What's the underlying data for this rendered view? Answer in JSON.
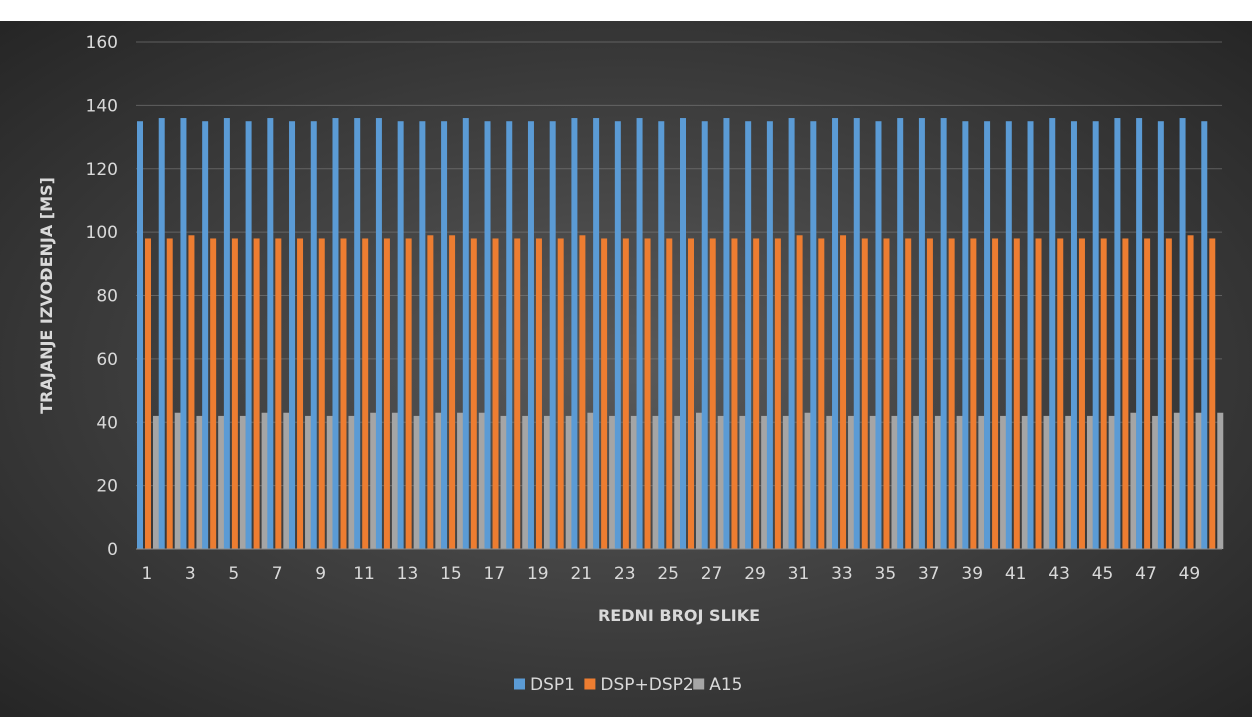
{
  "colors": {
    "background_center": "#595959",
    "background_edge": "#262626",
    "gridline": "#7f7f7f",
    "text": "#d9d9d9",
    "series": [
      "#5b9bd5",
      "#ed7d31",
      "#a5a5a5"
    ]
  },
  "chart_data": {
    "type": "bar",
    "title": "",
    "xlabel": "REDNI BROJ SLIKE",
    "ylabel": "TRAJANJE IZVOĐENJA [MS]",
    "ylim": [
      0,
      160
    ],
    "yticks": [
      0,
      20,
      40,
      60,
      80,
      100,
      120,
      140,
      160
    ],
    "grid": true,
    "legend_position": "bottom",
    "categories": [
      1,
      2,
      3,
      4,
      5,
      6,
      7,
      8,
      9,
      10,
      11,
      12,
      13,
      14,
      15,
      16,
      17,
      18,
      19,
      20,
      21,
      22,
      23,
      24,
      25,
      26,
      27,
      28,
      29,
      30,
      31,
      32,
      33,
      34,
      35,
      36,
      37,
      38,
      39,
      40,
      41,
      42,
      43,
      44,
      45,
      46,
      47,
      48,
      49,
      50
    ],
    "xtick_labels": [
      "1",
      "3",
      "5",
      "7",
      "9",
      "11",
      "13",
      "15",
      "17",
      "19",
      "21",
      "23",
      "25",
      "27",
      "29",
      "31",
      "33",
      "35",
      "37",
      "39",
      "41",
      "43",
      "45",
      "47",
      "49"
    ],
    "series": [
      {
        "name": "DSP1",
        "values": [
          135,
          136,
          136,
          135,
          136,
          135,
          136,
          135,
          135,
          136,
          136,
          136,
          135,
          135,
          135,
          136,
          135,
          135,
          135,
          135,
          136,
          136,
          135,
          136,
          135,
          136,
          135,
          136,
          135,
          135,
          136,
          135,
          136,
          136,
          135,
          136,
          136,
          136,
          135,
          135,
          135,
          135,
          136,
          135,
          135,
          136,
          136,
          135,
          136,
          135
        ]
      },
      {
        "name": "DSP+DSP2",
        "values": [
          98,
          98,
          99,
          98,
          98,
          98,
          98,
          98,
          98,
          98,
          98,
          98,
          98,
          99,
          99,
          98,
          98,
          98,
          98,
          98,
          99,
          98,
          98,
          98,
          98,
          98,
          98,
          98,
          98,
          98,
          99,
          98,
          99,
          98,
          98,
          98,
          98,
          98,
          98,
          98,
          98,
          98,
          98,
          98,
          98,
          98,
          98,
          98,
          99,
          98
        ]
      },
      {
        "name": "A15",
        "values": [
          42,
          43,
          42,
          42,
          42,
          43,
          43,
          42,
          42,
          42,
          43,
          43,
          42,
          43,
          43,
          43,
          42,
          42,
          42,
          42,
          43,
          42,
          42,
          42,
          42,
          43,
          42,
          42,
          42,
          42,
          43,
          42,
          42,
          42,
          42,
          42,
          42,
          42,
          42,
          42,
          42,
          42,
          42,
          42,
          42,
          43,
          42,
          43,
          43,
          43
        ]
      }
    ]
  }
}
